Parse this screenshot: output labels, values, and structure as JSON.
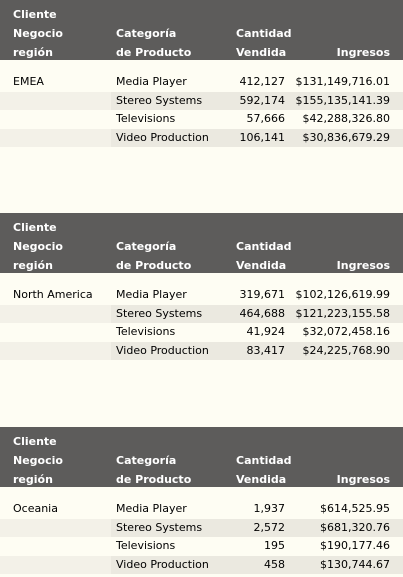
{
  "headers": {
    "region_l1": "Cliente",
    "region_l2": "Negocio",
    "region_l3": "región",
    "category_l1": "Categoría",
    "category_l2": "de Producto",
    "quantity_l1": "Cantidad",
    "quantity_l2": "Vendida",
    "revenue": "Ingresos"
  },
  "sections": [
    {
      "region": "EMEA",
      "rows": [
        {
          "category": "Media Player",
          "quantity": "412,127",
          "revenue": "$131,149,716.01"
        },
        {
          "category": "Stereo Systems",
          "quantity": "592,174",
          "revenue": "$155,135,141.39"
        },
        {
          "category": "Televisions",
          "quantity": "57,666",
          "revenue": "$42,288,326.80"
        },
        {
          "category": "Video Production",
          "quantity": "106,141",
          "revenue": "$30,836,679.29"
        }
      ]
    },
    {
      "region": "North America",
      "rows": [
        {
          "category": "Media Player",
          "quantity": "319,671",
          "revenue": "$102,126,619.99"
        },
        {
          "category": "Stereo Systems",
          "quantity": "464,688",
          "revenue": "$121,223,155.58"
        },
        {
          "category": "Televisions",
          "quantity": "41,924",
          "revenue": "$32,072,458.16"
        },
        {
          "category": "Video Production",
          "quantity": "83,417",
          "revenue": "$24,225,768.90"
        }
      ]
    },
    {
      "region": "Oceania",
      "rows": [
        {
          "category": "Media Player",
          "quantity": "1,937",
          "revenue": "$614,525.95"
        },
        {
          "category": "Stereo Systems",
          "quantity": "2,572",
          "revenue": "$681,320.76"
        },
        {
          "category": "Televisions",
          "quantity": "195",
          "revenue": "$190,177.46"
        },
        {
          "category": "Video Production",
          "quantity": "458",
          "revenue": "$130,744.67"
        }
      ]
    }
  ]
}
